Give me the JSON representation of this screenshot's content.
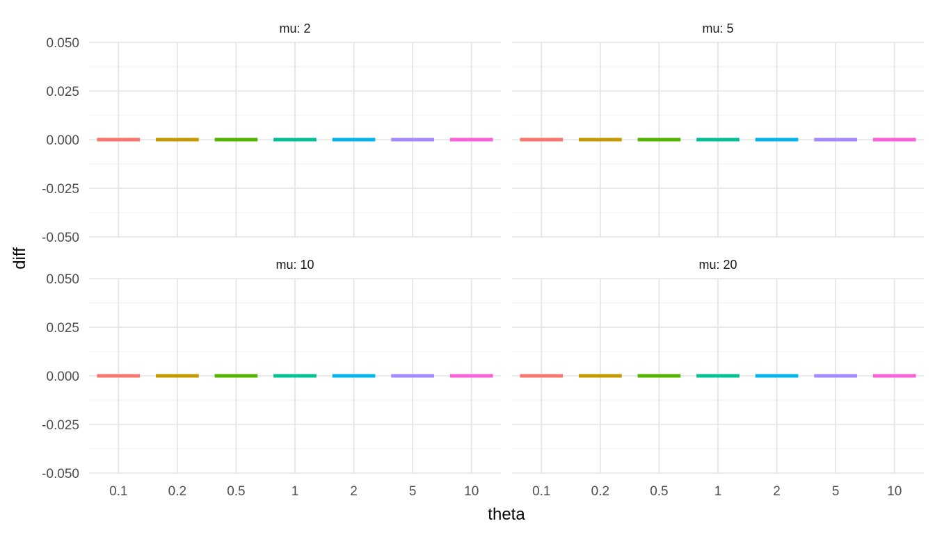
{
  "chart_data": {
    "type": "bar",
    "xlabel": "theta",
    "ylabel": "diff",
    "categories": [
      "0.1",
      "0.2",
      "0.5",
      "1",
      "2",
      "5",
      "10"
    ],
    "category_colors": [
      "#F8766D",
      "#C49A00",
      "#53B400",
      "#00C094",
      "#00B6EB",
      "#A58AFF",
      "#FB61D7"
    ],
    "ylim": [
      -0.05,
      0.05
    ],
    "y_ticks": [
      0.05,
      0.025,
      0,
      -0.025,
      -0.05
    ],
    "y_tick_labels": [
      "0.050",
      "0.025",
      "0.000",
      "-0.025",
      "-0.050"
    ],
    "grid": true,
    "legend": "none",
    "facets": [
      {
        "label": "mu: 2",
        "values": [
          0,
          0,
          0,
          0,
          0,
          0,
          0
        ]
      },
      {
        "label": "mu: 5",
        "values": [
          0,
          0,
          0,
          0,
          0,
          0,
          0
        ]
      },
      {
        "label": "mu: 10",
        "values": [
          0,
          0,
          0,
          0,
          0,
          0,
          0
        ]
      },
      {
        "label": "mu: 20",
        "values": [
          0,
          0,
          0,
          0,
          0,
          0,
          0
        ]
      }
    ]
  }
}
